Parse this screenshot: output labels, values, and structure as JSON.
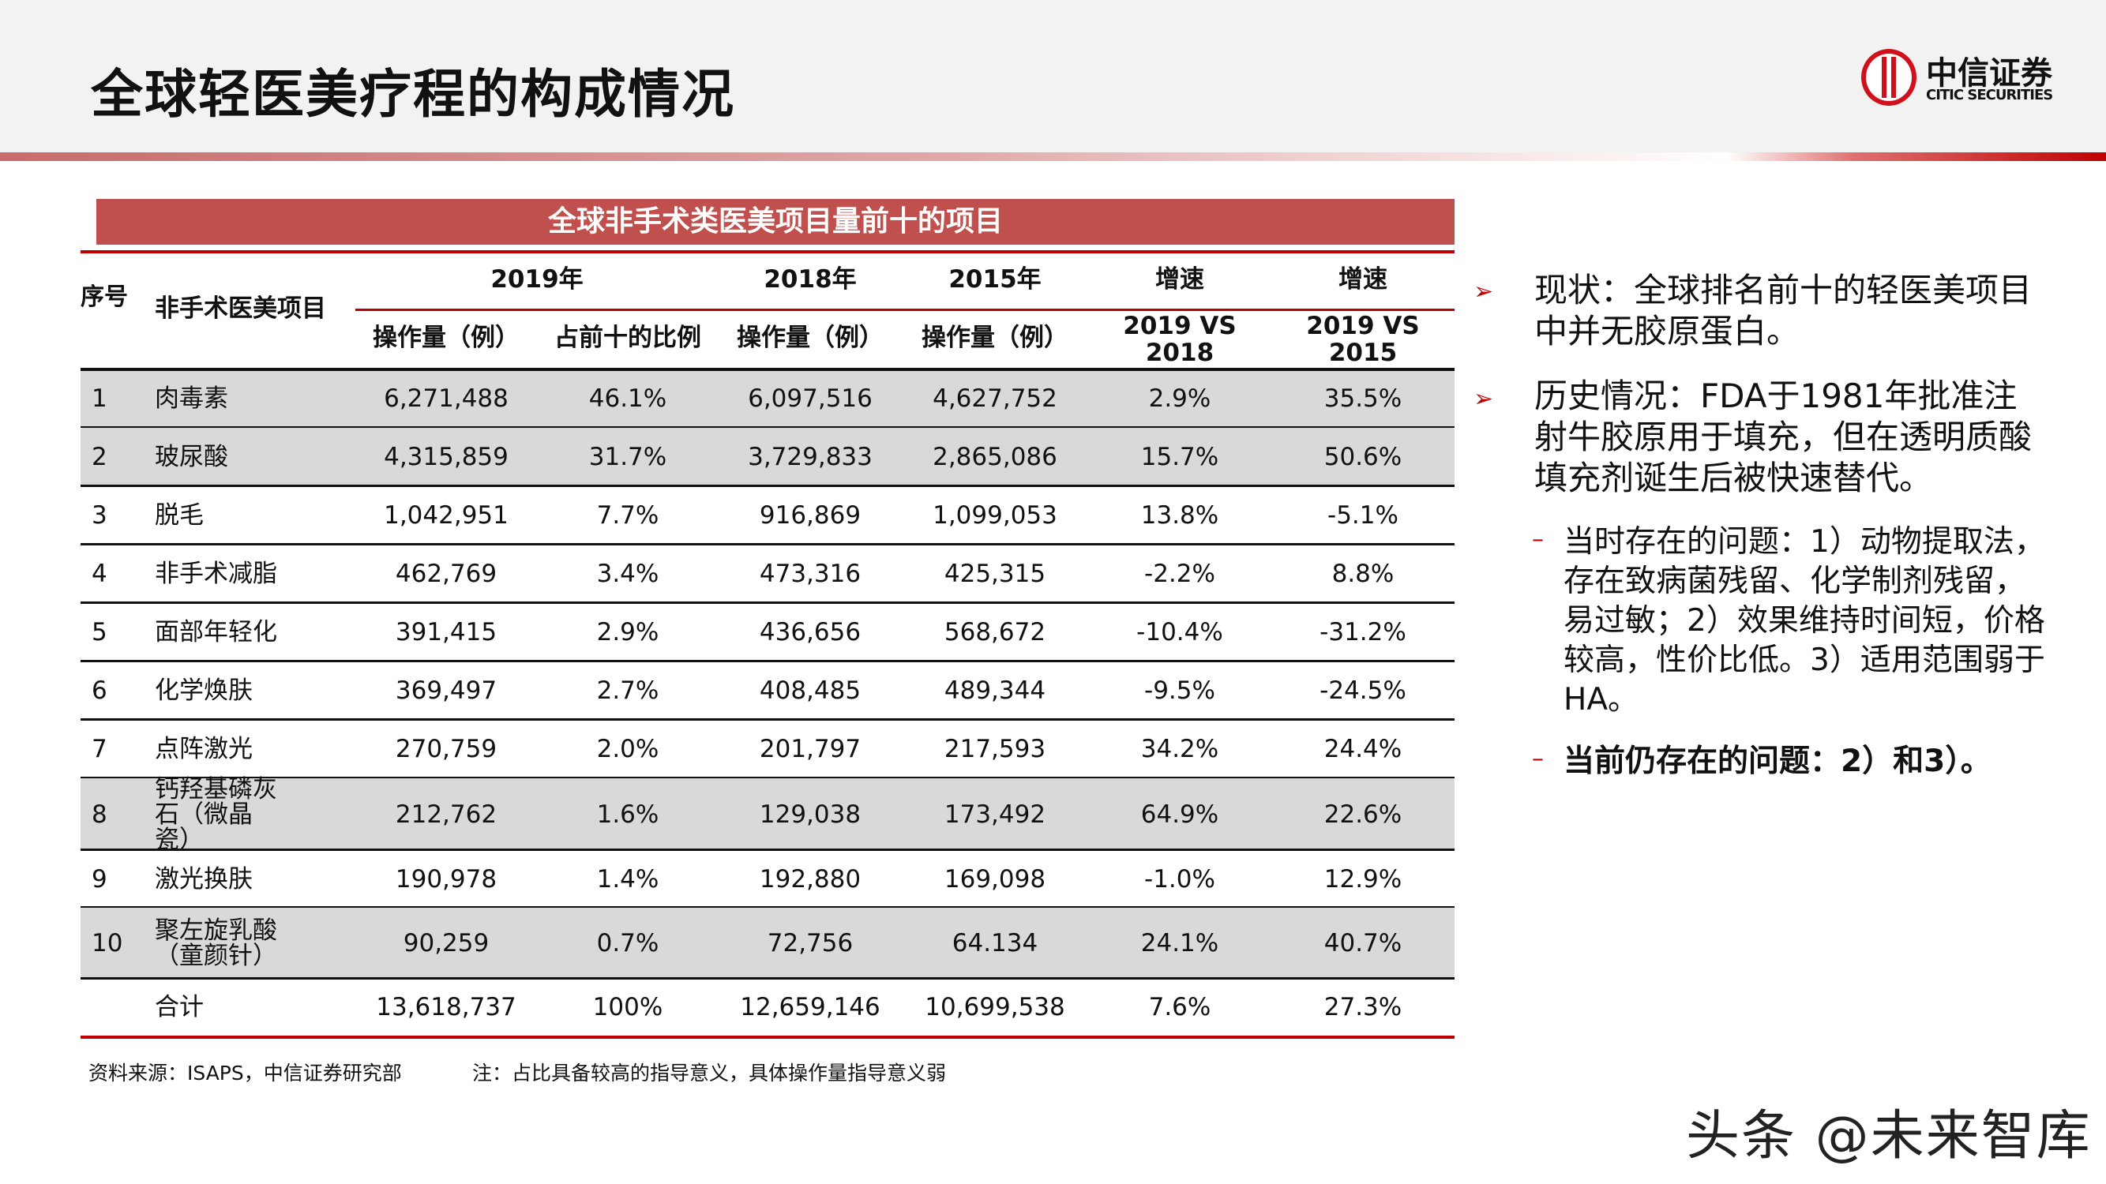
{
  "header": {
    "title": "全球轻医美疗程的构成情况",
    "logo_cn": "中信证券",
    "logo_en": "CITIC SECURITIES"
  },
  "table": {
    "caption": "全球非手术类医美项目量前十的项目",
    "headers": {
      "seq": "序号",
      "item": "非手术医美项目",
      "y2019": "2019年",
      "y2018": "2018年",
      "y2015": "2015年",
      "growth1": "增速",
      "growth2": "增速",
      "ops2019": "操作量（例）",
      "share": "占前十的比例",
      "ops2018": "操作量（例）",
      "ops2015": "操作量（例）",
      "vs2018": "2019 VS 2018",
      "vs2015": "2019 VS 2015"
    },
    "rows": [
      [
        "1",
        "肉毒素",
        "6,271,488",
        "46.1%",
        "6,097,516",
        "4,627,752",
        "2.9%",
        "35.5%"
      ],
      [
        "2",
        "玻尿酸",
        "4,315,859",
        "31.7%",
        "3,729,833",
        "2,865,086",
        "15.7%",
        "50.6%"
      ],
      [
        "3",
        "脱毛",
        "1,042,951",
        "7.7%",
        "916,869",
        "1,099,053",
        "13.8%",
        "-5.1%"
      ],
      [
        "4",
        "非手术减脂",
        "462,769",
        "3.4%",
        "473,316",
        "425,315",
        "-2.2%",
        "8.8%"
      ],
      [
        "5",
        "面部年轻化",
        "391,415",
        "2.9%",
        "436,656",
        "568,672",
        "-10.4%",
        "-31.2%"
      ],
      [
        "6",
        "化学焕肤",
        "369,497",
        "2.7%",
        "408,485",
        "489,344",
        "-9.5%",
        "-24.5%"
      ],
      [
        "7",
        "点阵激光",
        "270,759",
        "2.0%",
        "201,797",
        "217,593",
        "34.2%",
        "24.4%"
      ],
      [
        "8",
        "钙羟基磷灰石（微晶瓷）",
        "212,762",
        "1.6%",
        "129,038",
        "173,492",
        "64.9%",
        "22.6%"
      ],
      [
        "9",
        "激光换肤",
        "190,978",
        "1.4%",
        "192,880",
        "169,098",
        "-1.0%",
        "12.9%"
      ],
      [
        "10",
        "聚左旋乳酸（童颜针）",
        "90,259",
        "0.7%",
        "72,756",
        "64.134",
        "24.1%",
        "40.7%"
      ],
      [
        "",
        "合计",
        "13,618,737",
        "100%",
        "12,659,146",
        "10,699,538",
        "7.6%",
        "27.3%"
      ]
    ],
    "source": "资料来源：ISAPS，中信证券研究部",
    "note": "注：占比具备较高的指导意义，具体操作量指导意义弱"
  },
  "right": {
    "bullet_icon": "arrow-bullet-icon",
    "b1": "现状：全球排名前十的轻医美项目中并无胶原蛋白。",
    "b2": "历史情况：FDA于1981年批准注射牛胶原用于填充，但在透明质酸填充剂诞生后被快速替代。",
    "s1": "当时存在的问题：1）动物提取法，存在致病菌残留、化学制剂残留，易过敏；2）效果维持时间短，价格较高，性价比低。3）适用范围弱于HA。",
    "s2": "当前仍存在的问题：2）和3）。"
  },
  "watermark": "头条 @未来智库",
  "colors": {
    "accent": "#c00000",
    "banner": "#c0504d",
    "shade": "#d9d9d9"
  }
}
